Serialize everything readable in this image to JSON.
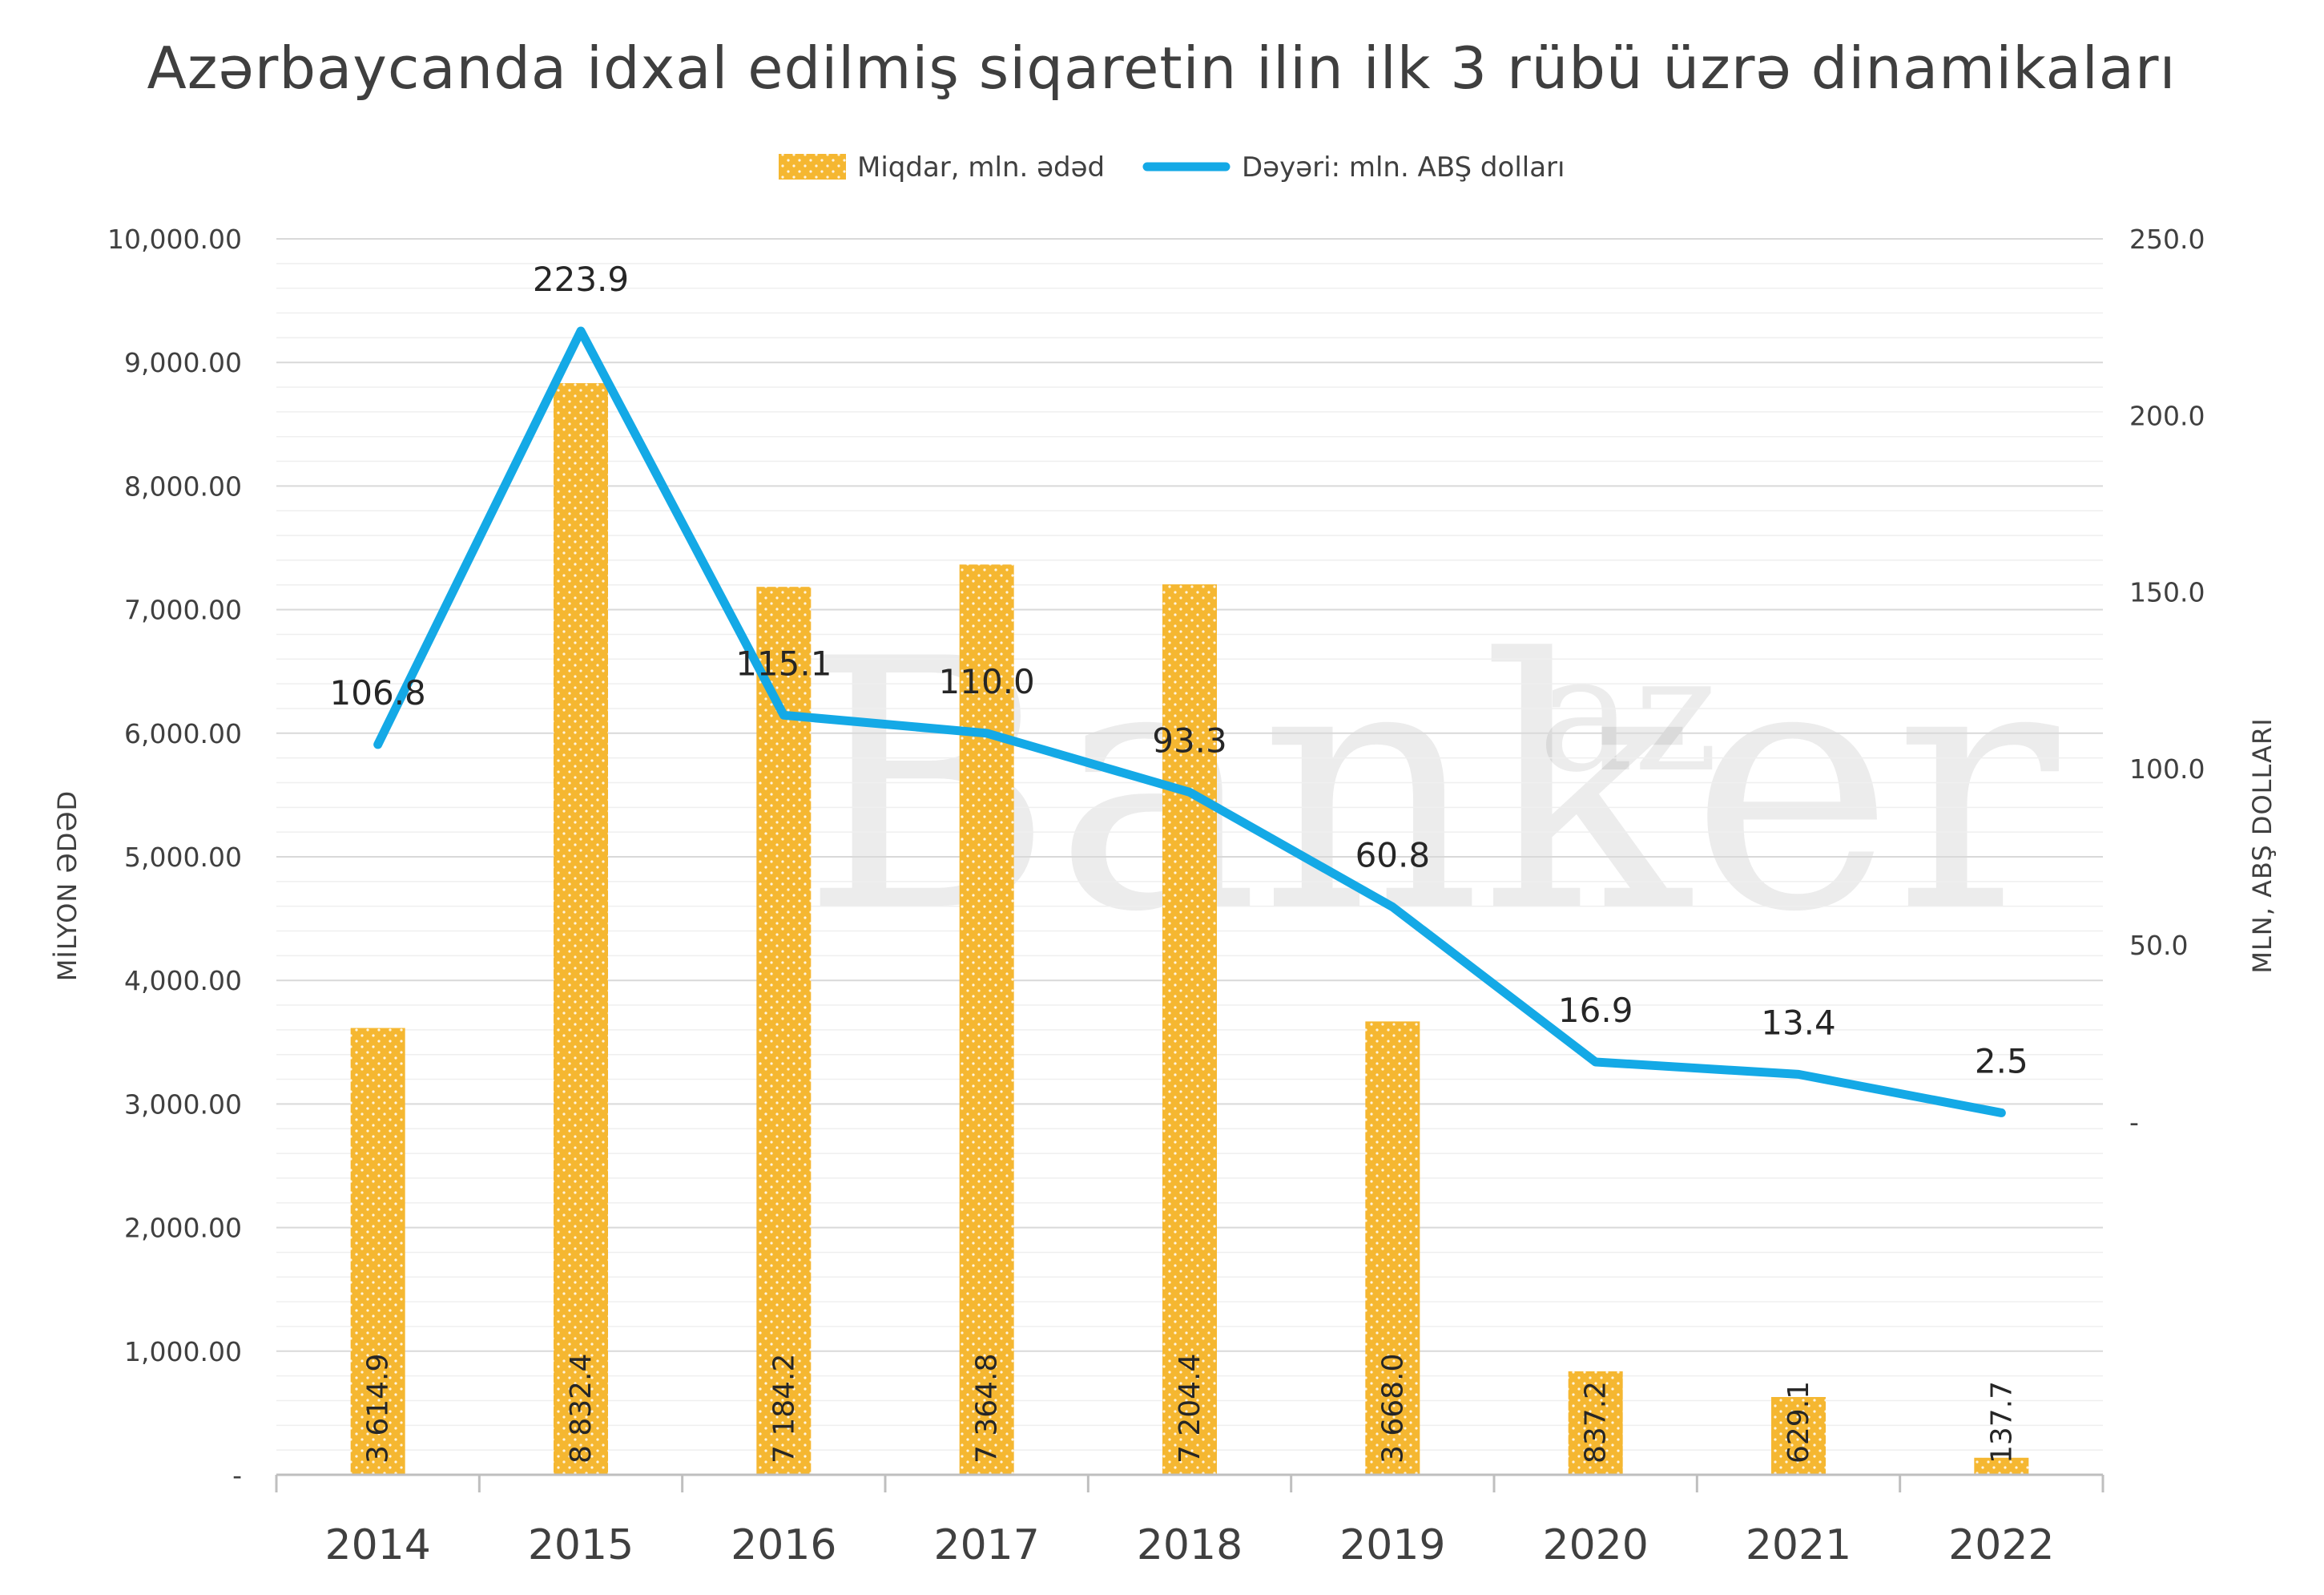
{
  "title": "Azərbaycanda idxal edilmiş siqaretin ilin ilk 3 rübü üzrə dinamikaları",
  "watermark": "Banker",
  "watermark_sup": "az",
  "colors": {
    "bar": "#f5b731",
    "line": "#14a9e6",
    "grid": "#e6e6e6",
    "text": "#404040"
  },
  "chart_data": {
    "type": "bar",
    "title": "Azərbaycanda idxal edilmiş siqaretin ilin ilk 3 rübü üzrə dinamikaları",
    "categories": [
      "2014",
      "2015",
      "2016",
      "2017",
      "2018",
      "2019",
      "2020",
      "2021",
      "2022"
    ],
    "series": [
      {
        "name": "Miqdar, mln. ədəd",
        "type": "bar",
        "axis": "left",
        "values": [
          3614.9,
          8832.4,
          7184.2,
          7364.8,
          7204.4,
          3668.0,
          837.2,
          629.1,
          137.7
        ],
        "labels": [
          "3 614.9",
          "8 832.4",
          "7 184.2",
          "7 364.8",
          "7 204.4",
          "3 668.0",
          "837.2",
          "629.1",
          "137.7"
        ]
      },
      {
        "name": "Dəyəri: mln. ABŞ dolları",
        "type": "line",
        "axis": "right",
        "values": [
          106.8,
          223.9,
          115.1,
          110.0,
          93.3,
          60.8,
          16.9,
          13.4,
          2.5
        ],
        "labels": [
          "106.8",
          "223.9",
          "115.1",
          "110.0",
          "93.3",
          "60.8",
          "16.9",
          "13.4",
          "2.5"
        ]
      }
    ],
    "ylabel": "MİLYON ƏDƏD",
    "ylabel_right": "MLN, ABŞ DOLLARI",
    "ylim": [
      0,
      10000
    ],
    "ylim_right": [
      -100,
      250
    ],
    "yticks_left": [
      "-",
      "1,000.00",
      "2,000.00",
      "3,000.00",
      "4,000.00",
      "5,000.00",
      "6,000.00",
      "7,000.00",
      "8,000.00",
      "9,000.00",
      "10,000.00"
    ],
    "yticks_right": [
      "-",
      "50.0",
      "100.0",
      "150.0",
      "200.0",
      "250.0"
    ],
    "grid": true,
    "legend_position": "top-center"
  }
}
